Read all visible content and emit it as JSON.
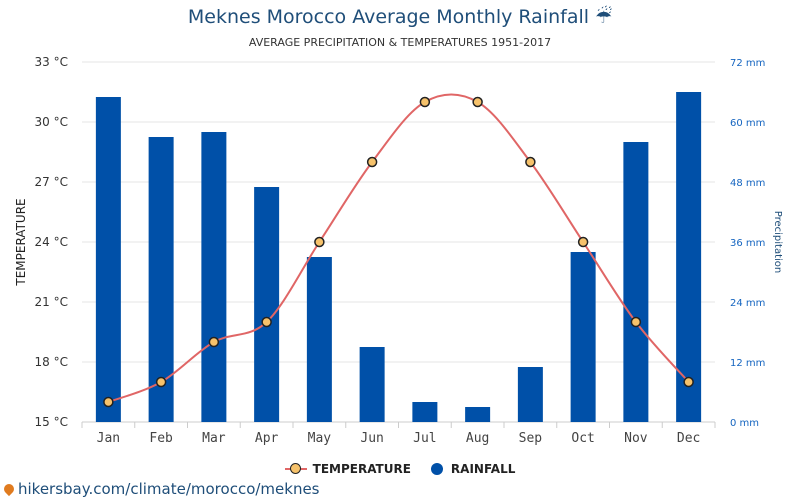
{
  "chart_data": {
    "type": "bar",
    "title": "Meknes Morocco Average Monthly Rainfall ☔",
    "subtitle": "AVERAGE PRECIPITATION & TEMPERATURES 1951-2017",
    "categories": [
      "Jan",
      "Feb",
      "Mar",
      "Apr",
      "May",
      "Jun",
      "Jul",
      "Aug",
      "Sep",
      "Oct",
      "Nov",
      "Dec"
    ],
    "series": [
      {
        "name": "TEMPERATURE",
        "type": "line",
        "axis": "left",
        "color": "#e06666",
        "marker_color": "#f6c26b",
        "values": [
          16,
          17,
          19,
          20,
          24,
          28,
          31,
          31,
          28,
          24,
          20,
          17
        ]
      },
      {
        "name": "RAINFALL",
        "type": "bar",
        "axis": "right",
        "color": "#0050a8",
        "values": [
          65,
          57,
          58,
          47,
          33,
          15,
          4,
          3,
          11,
          34,
          56,
          66
        ]
      }
    ],
    "ylabel": "TEMPERATURE",
    "y2label": "Precipitation",
    "ylim": [
      15,
      33
    ],
    "y2lim": [
      0,
      72
    ],
    "yticks": [
      "15 °C",
      "18 °C",
      "21 °C",
      "24 °C",
      "27 °C",
      "30 °C",
      "33 °C"
    ],
    "y2ticks": [
      "0 mm",
      "12 mm",
      "24 mm",
      "36 mm",
      "48 mm",
      "60 mm",
      "72 mm"
    ],
    "grid": true,
    "legend_position": "bottom"
  },
  "watermark": "hikersbay.com/climate/morocco/meknes"
}
